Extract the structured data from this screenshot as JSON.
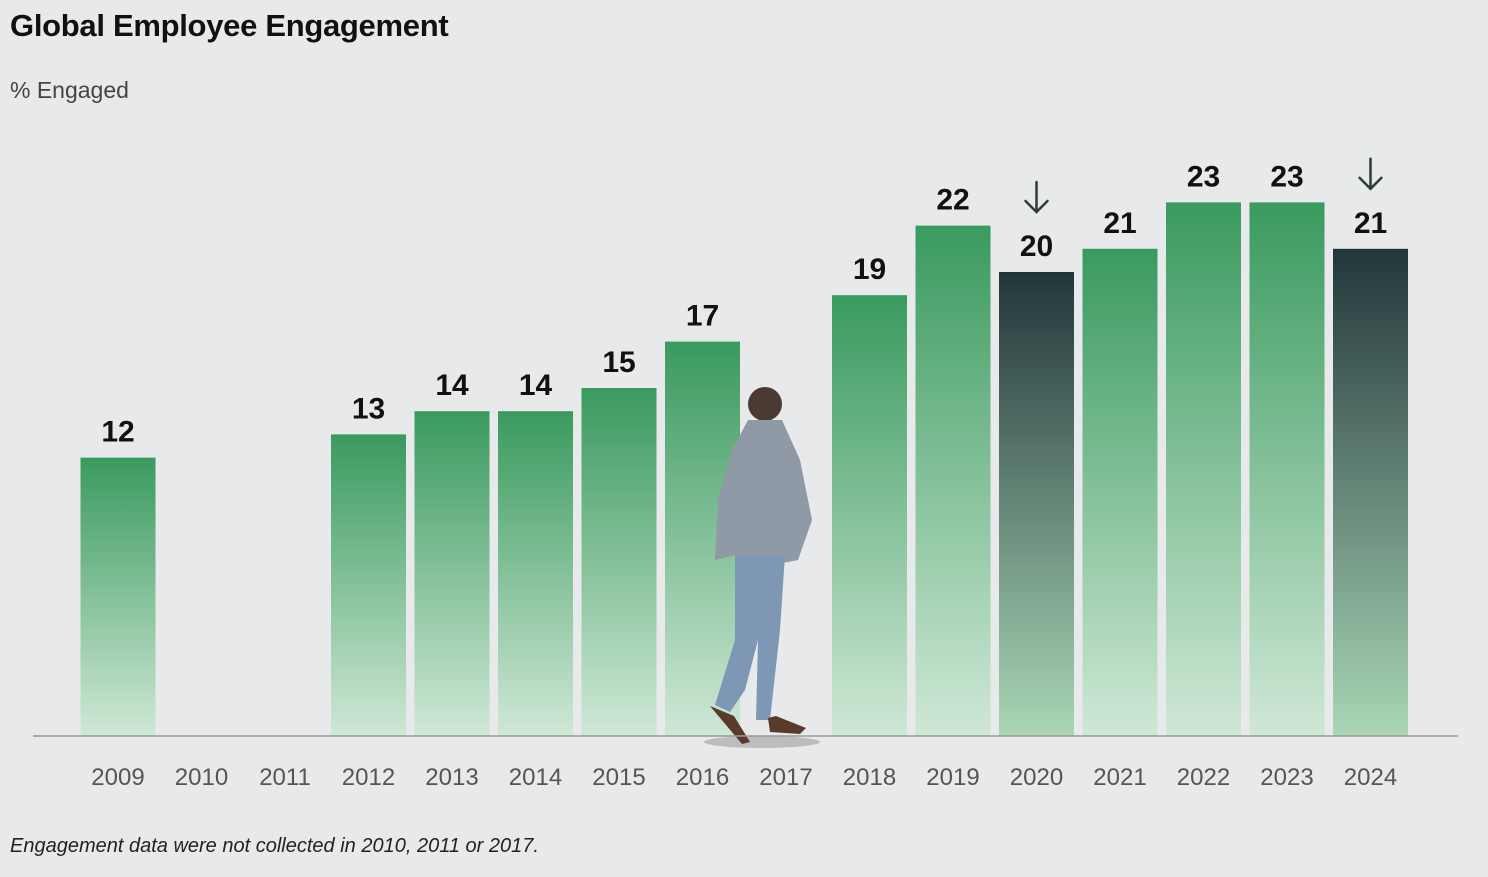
{
  "header": {
    "title": "Global Employee Engagement",
    "subtitle": "% Engaged"
  },
  "footnote": "Engagement data were not collected in 2010, 2011 or 2017.",
  "colors": {
    "bar_top": "#3a9a5e",
    "bar_bottom": "#cfe8d6",
    "bar_decline_top": "#22363a",
    "bar_decline_bottom": "#a9d7b6",
    "label": "#111111",
    "axis": "#999999",
    "decline_arrow": "#2c3e3a"
  },
  "chart_data": {
    "type": "bar",
    "title": "Global Employee Engagement",
    "ylabel": "% Engaged",
    "xlabel": "",
    "categories": [
      "2009",
      "2010",
      "2011",
      "2012",
      "2013",
      "2014",
      "2015",
      "2016",
      "2017",
      "2018",
      "2019",
      "2020",
      "2021",
      "2022",
      "2023",
      "2024"
    ],
    "values": [
      12,
      null,
      null,
      13,
      14,
      14,
      15,
      17,
      null,
      19,
      22,
      20,
      21,
      23,
      23,
      21
    ],
    "value_labels": [
      "12",
      "",
      "",
      "13",
      "14",
      "14",
      "15",
      "17",
      "",
      "19",
      "22",
      "20",
      "21",
      "23",
      "23",
      "21"
    ],
    "decline_years": [
      "2020",
      "2024"
    ],
    "decline_arrow_icon": "down-arrow-icon",
    "ylim": [
      0,
      23
    ],
    "grid": false,
    "legend": "none"
  }
}
